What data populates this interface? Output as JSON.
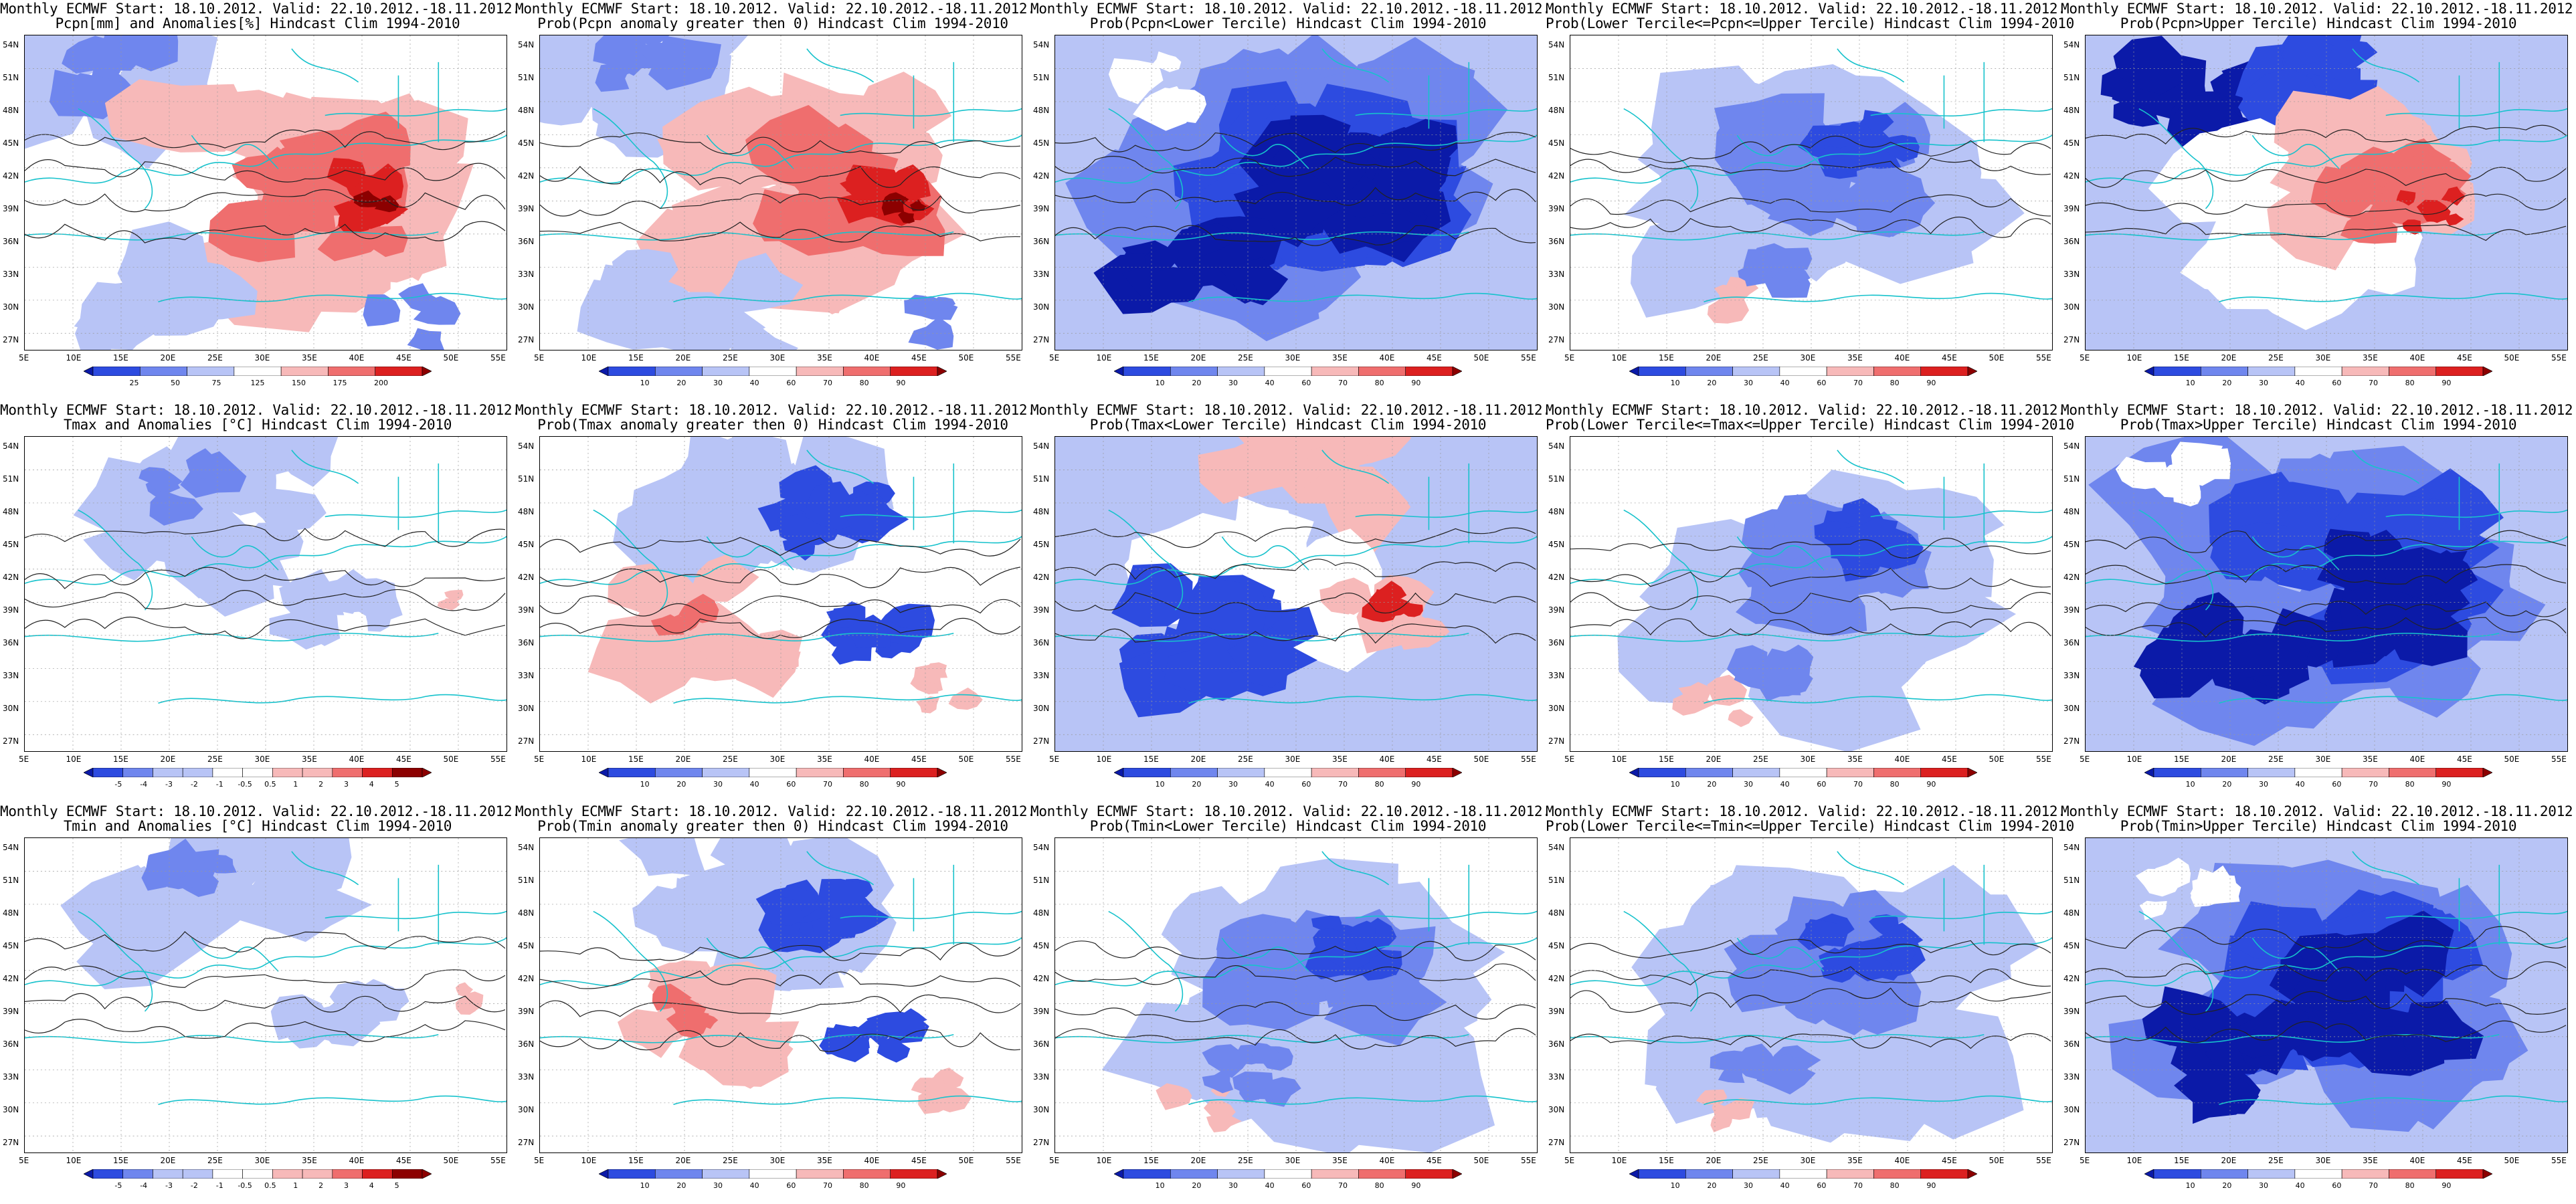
{
  "palette": {
    "deep_blue": "#0b1aa8",
    "blue": "#2d4be0",
    "mid_blue": "#6f86ee",
    "light_blue": "#b8c4f6",
    "white": "#ffffff",
    "light_red": "#f7b9b9",
    "mid_red": "#ef6e6e",
    "red": "#dc2020",
    "deep_red": "#8c0000",
    "coastline": "#17c2cc",
    "contour": "#222222"
  },
  "axes": {
    "lat_labels": [
      "54N",
      "51N",
      "48N",
      "45N",
      "42N",
      "39N",
      "36N",
      "33N",
      "30N",
      "27N"
    ],
    "lon_labels": [
      "5E",
      "10E",
      "15E",
      "20E",
      "25E",
      "30E",
      "35E",
      "40E",
      "45E",
      "50E",
      "55E"
    ]
  },
  "colorbars": {
    "pcpn_anom": [
      "25",
      "50",
      "75",
      "125",
      "150",
      "175",
      "200"
    ],
    "prob": [
      "10",
      "20",
      "30",
      "40",
      "60",
      "70",
      "80",
      "90"
    ],
    "temp_anom": [
      "-5",
      "-4",
      "-3",
      "-2",
      "-1",
      "-0.5",
      "0.5",
      "1",
      "2",
      "3",
      "4",
      "5"
    ]
  },
  "rows": [
    {
      "panels": [
        {
          "line1": "Monthly ECMWF Start: 18.10.2012. Valid: 22.10.2012.-18.11.2012.",
          "line2": "Pcpn[mm] and Anomalies[%] Hindcast Clim 1994-2010",
          "colorbar": "pcpn_anom",
          "tone": "red-south"
        },
        {
          "line1": "Monthly ECMWF Start: 18.10.2012. Valid: 22.10.2012.-18.11.2012.",
          "line2": "Prob(Pcpn anomaly greater then 0) Hindcast Clim 1994-2010",
          "colorbar": "prob",
          "tone": "red-south"
        },
        {
          "line1": "Monthly ECMWF Start: 18.10.2012. Valid: 22.10.2012.-18.11.2012.",
          "line2": "Prob(Pcpn<Lower Tercile) Hindcast Clim 1994-2010",
          "colorbar": "prob",
          "tone": "blue"
        },
        {
          "line1": "Monthly ECMWF Start: 18.10.2012. Valid: 22.10.2012.-18.11.2012.",
          "line2": "Prob(Lower Tercile<=Pcpn<=Upper Tercile) Hindcast Clim 1994-2010",
          "colorbar": "prob",
          "tone": "mixed-blue"
        },
        {
          "line1": "Monthly ECMWF Start: 18.10.2012. Valid: 22.10.2012.-18.11.2012.",
          "line2": "Prob(Pcpn>Upper Tercile) Hindcast Clim 1994-2010",
          "colorbar": "prob",
          "tone": "red-center"
        }
      ]
    },
    {
      "panels": [
        {
          "line1": "Monthly ECMWF Start: 18.10.2012. Valid: 22.10.2012.-18.11.2012.",
          "line2": "Tmax and Anomalies [°C] Hindcast Clim 1994-2010",
          "colorbar": "temp_anom",
          "tone": "light"
        },
        {
          "line1": "Monthly ECMWF Start: 18.10.2012. Valid: 22.10.2012.-18.11.2012.",
          "line2": "Prob(Tmax anomaly greater then 0) Hindcast Clim 1994-2010",
          "colorbar": "prob",
          "tone": "mixed-red"
        },
        {
          "line1": "Monthly ECMWF Start: 18.10.2012. Valid: 22.10.2012.-18.11.2012.",
          "line2": "Prob(Tmax<Lower Tercile) Hindcast Clim 1994-2010",
          "colorbar": "prob",
          "tone": "blue-red"
        },
        {
          "line1": "Monthly ECMWF Start: 18.10.2012. Valid: 22.10.2012.-18.11.2012.",
          "line2": "Prob(Lower Tercile<=Tmax<=Upper Tercile) Hindcast Clim 1994-2010",
          "colorbar": "prob",
          "tone": "mixed-blue"
        },
        {
          "line1": "Monthly ECMWF Start: 18.10.2012. Valid: 22.10.2012.-18.11.2012.",
          "line2": "Prob(Tmax>Upper Tercile) Hindcast Clim 1994-2010",
          "colorbar": "prob",
          "tone": "blue"
        }
      ]
    },
    {
      "panels": [
        {
          "line1": "Monthly ECMWF Start: 18.10.2012. Valid: 22.10.2012.-18.11.2012.",
          "line2": "Tmin and Anomalies [°C] Hindcast Clim 1994-2010",
          "colorbar": "temp_anom",
          "tone": "light"
        },
        {
          "line1": "Monthly ECMWF Start: 18.10.2012. Valid: 22.10.2012.-18.11.2012.",
          "line2": "Prob(Tmin anomaly greater then 0) Hindcast Clim 1994-2010",
          "colorbar": "prob",
          "tone": "mixed-red"
        },
        {
          "line1": "Monthly ECMWF Start: 18.10.2012. Valid: 22.10.2012.-18.11.2012.",
          "line2": "Prob(Tmin<Lower Tercile) Hindcast Clim 1994-2010",
          "colorbar": "prob",
          "tone": "mixed-blue"
        },
        {
          "line1": "Monthly ECMWF Start: 18.10.2012. Valid: 22.10.2012.-18.11.2012.",
          "line2": "Prob(Lower Tercile<=Tmin<=Upper Tercile) Hindcast Clim 1994-2010",
          "colorbar": "prob",
          "tone": "mixed-blue"
        },
        {
          "line1": "Monthly ECMWF Start: 18.10.2012. Valid: 22.10.2012.-18.11.2012.",
          "line2": "Prob(Tmin>Upper Tercile) Hindcast Clim 1994-2010",
          "colorbar": "prob",
          "tone": "blue"
        }
      ]
    }
  ]
}
